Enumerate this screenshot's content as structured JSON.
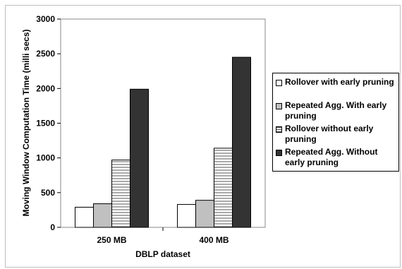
{
  "chart_data": {
    "type": "bar",
    "categories": [
      "250 MB",
      "400 MB"
    ],
    "series": [
      {
        "name": "Rollover with early pruning",
        "values": [
          290,
          330
        ],
        "fill": "#ffffff",
        "pattern": "none"
      },
      {
        "name": "Repeated Agg. With early pruning",
        "values": [
          340,
          390
        ],
        "fill": "#c0c0c0",
        "pattern": "none"
      },
      {
        "name": "Rollover without early pruning",
        "values": [
          970,
          1140
        ],
        "fill": "#ffffff",
        "pattern": "horizontal-lines"
      },
      {
        "name": "Repeated Agg. Without early pruning",
        "values": [
          1990,
          2450
        ],
        "fill": "#333333",
        "pattern": "none"
      }
    ],
    "xlabel": "DBLP dataset",
    "ylabel": "Moving Window Computation Time (milli secs)",
    "ylim": [
      0,
      3000
    ],
    "yticks": [
      0,
      500,
      1000,
      1500,
      2000,
      2500,
      3000
    ],
    "grid": false,
    "legend_position": "right"
  }
}
